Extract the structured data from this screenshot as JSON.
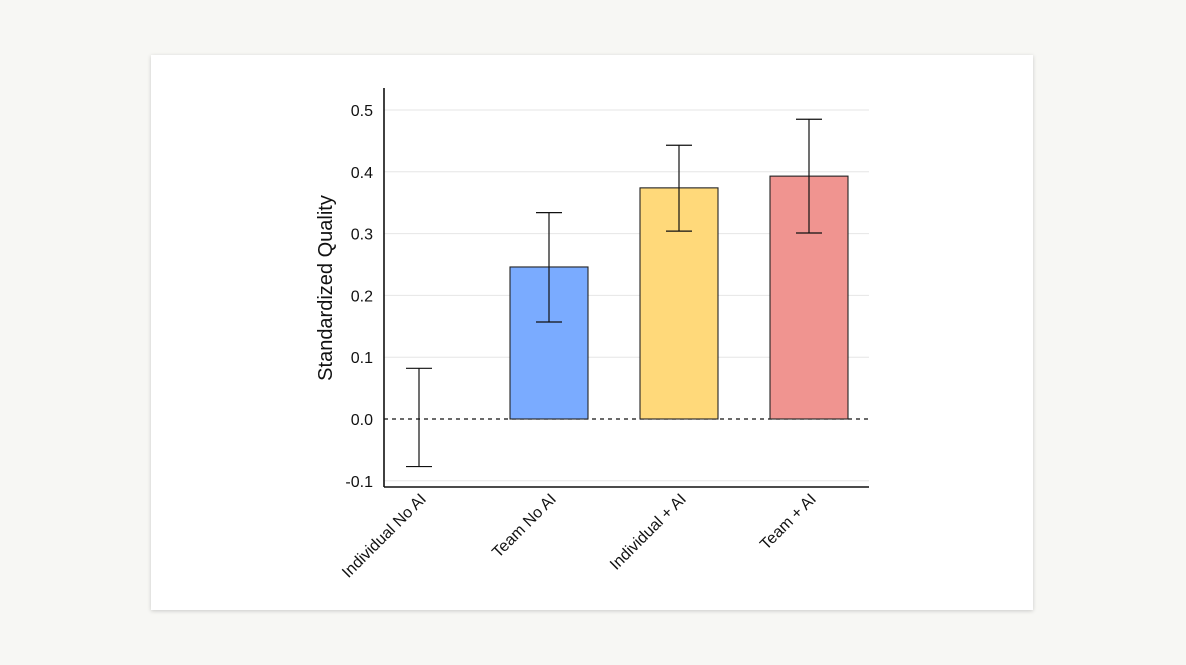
{
  "chart_data": {
    "type": "bar",
    "title": "",
    "xlabel": "",
    "ylabel": "Standardized Quality",
    "categories": [
      "Individual No AI",
      "Team No AI",
      "Individual + AI",
      "Team + AI"
    ],
    "values": [
      0.0,
      0.246,
      0.374,
      0.393
    ],
    "error_low": [
      -0.077,
      0.157,
      0.304,
      0.301
    ],
    "error_high": [
      0.082,
      0.334,
      0.443,
      0.485
    ],
    "colors": [
      "#ffffff",
      "#7aabff",
      "#ffd97a",
      "#f09490"
    ],
    "ylim": [
      -0.11,
      0.53
    ],
    "yticks": [
      -0.1,
      0.0,
      0.1,
      0.2,
      0.3,
      0.4,
      0.5
    ],
    "ytick_labels": [
      "-0.1",
      "0.0",
      "0.1",
      "0.2",
      "0.3",
      "0.4",
      "0.5"
    ],
    "reference_line": 0.0,
    "grid": true
  }
}
